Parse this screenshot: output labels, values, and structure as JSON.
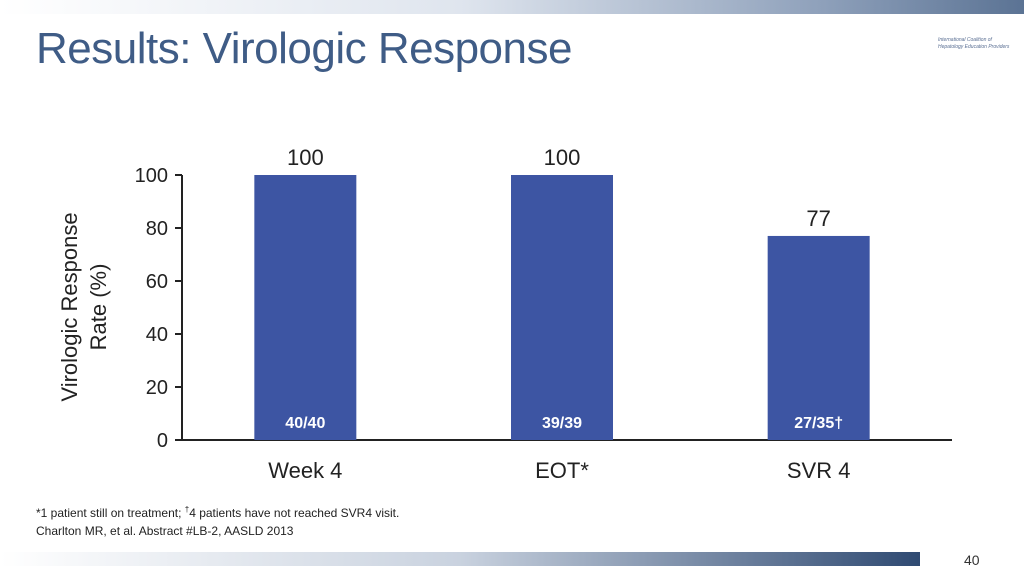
{
  "slide": {
    "title": "Results: Virologic Response",
    "logo_line1": "International Coalition of",
    "logo_line2": "Hepatology Education Providers",
    "footnote_prefix": "*1 patient still on treatment; ",
    "footnote_dagger": "†",
    "footnote_suffix": "4 patients have not reached SVR4 visit.",
    "citation": "Charlton MR, et al. Abstract #LB-2, AASLD 2013",
    "page_number": "40"
  },
  "colors": {
    "bar": "#3d55a3",
    "title": "#3f5c86",
    "axis": "#222222"
  },
  "chart_data": {
    "type": "bar",
    "title": "",
    "categories": [
      "Week 4",
      "EOT*",
      "SVR 4"
    ],
    "values": [
      100,
      100,
      77
    ],
    "value_labels": [
      "100",
      "100",
      "77"
    ],
    "inner_labels": [
      "40/40",
      "39/39",
      "27/35†"
    ],
    "ylabel_line1": "Virologic Response",
    "ylabel_line2": "Rate (%)",
    "xlabel": "",
    "ylim": [
      0,
      100
    ],
    "yticks": [
      0,
      20,
      40,
      60,
      80,
      100
    ],
    "grid": false,
    "legend": "none"
  }
}
